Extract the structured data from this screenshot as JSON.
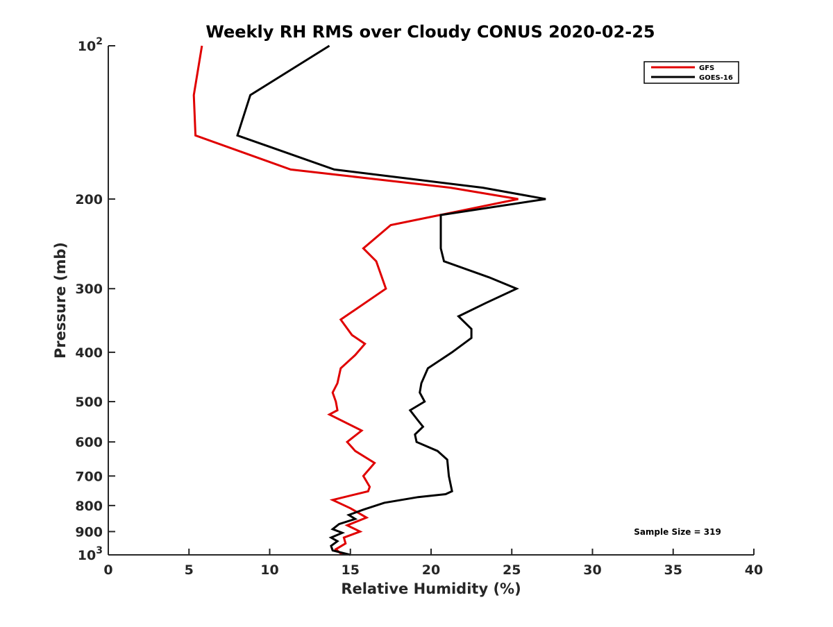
{
  "chart_data": {
    "type": "line",
    "title": "Weekly RH RMS over Cloudy CONUS 2020-02-25",
    "xlabel": "Relative Humidity (%)",
    "ylabel": "Pressure (mb)",
    "xlim": [
      0,
      40
    ],
    "ylim": [
      100,
      1000
    ],
    "y_scale": "log",
    "y_reversed": true,
    "x_ticks": [
      0,
      5,
      10,
      15,
      20,
      25,
      30,
      35,
      40
    ],
    "x_tick_labels": [
      "0",
      "5",
      "10",
      "15",
      "20",
      "25",
      "30",
      "35",
      "40"
    ],
    "y_ticks": [
      100,
      200,
      300,
      400,
      500,
      600,
      700,
      800,
      900,
      1000
    ],
    "y_tick_labels": [
      {
        "base": "10",
        "exp": "2"
      },
      {
        "base": "200",
        "exp": ""
      },
      {
        "base": "300",
        "exp": ""
      },
      {
        "base": "400",
        "exp": ""
      },
      {
        "base": "500",
        "exp": ""
      },
      {
        "base": "600",
        "exp": ""
      },
      {
        "base": "700",
        "exp": ""
      },
      {
        "base": "800",
        "exp": ""
      },
      {
        "base": "900",
        "exp": ""
      },
      {
        "base": "10",
        "exp": "3"
      }
    ],
    "grid": false,
    "legend_position": "top-right",
    "annotation": "Sample Size = 319",
    "series": [
      {
        "name": "GFS",
        "color": "#e00000",
        "points": [
          [
            5.8,
            100
          ],
          [
            5.3,
            125
          ],
          [
            5.4,
            150
          ],
          [
            11.3,
            175
          ],
          [
            21.2,
            190
          ],
          [
            25.4,
            200
          ],
          [
            17.5,
            225
          ],
          [
            15.8,
            250
          ],
          [
            16.6,
            265
          ],
          [
            17.2,
            300
          ],
          [
            14.4,
            345
          ],
          [
            15.1,
            370
          ],
          [
            15.9,
            385
          ],
          [
            15.3,
            405
          ],
          [
            14.4,
            430
          ],
          [
            14.2,
            460
          ],
          [
            13.9,
            480
          ],
          [
            14.1,
            500
          ],
          [
            14.2,
            520
          ],
          [
            13.7,
            530
          ],
          [
            15.7,
            570
          ],
          [
            14.8,
            600
          ],
          [
            15.3,
            625
          ],
          [
            16.5,
            660
          ],
          [
            15.8,
            700
          ],
          [
            16.2,
            735
          ],
          [
            16.1,
            750
          ],
          [
            13.9,
            780
          ],
          [
            15.0,
            810
          ],
          [
            16.0,
            845
          ],
          [
            14.8,
            875
          ],
          [
            15.6,
            900
          ],
          [
            14.6,
            925
          ],
          [
            14.7,
            950
          ],
          [
            14.1,
            975
          ],
          [
            14.5,
            1000
          ]
        ]
      },
      {
        "name": "GOES-16",
        "color": "#000000",
        "points": [
          [
            13.7,
            100
          ],
          [
            8.8,
            125
          ],
          [
            8.0,
            150
          ],
          [
            14.0,
            175
          ],
          [
            23.2,
            190
          ],
          [
            27.1,
            200
          ],
          [
            20.6,
            215
          ],
          [
            20.6,
            250
          ],
          [
            20.8,
            265
          ],
          [
            23.6,
            285
          ],
          [
            25.3,
            300
          ],
          [
            23.4,
            320
          ],
          [
            21.7,
            340
          ],
          [
            22.5,
            360
          ],
          [
            22.5,
            375
          ],
          [
            21.3,
            400
          ],
          [
            19.8,
            430
          ],
          [
            19.4,
            460
          ],
          [
            19.3,
            480
          ],
          [
            19.6,
            500
          ],
          [
            18.7,
            520
          ],
          [
            19.2,
            545
          ],
          [
            19.5,
            560
          ],
          [
            19.0,
            580
          ],
          [
            19.1,
            600
          ],
          [
            20.4,
            625
          ],
          [
            21.0,
            650
          ],
          [
            21.1,
            700
          ],
          [
            21.3,
            750
          ],
          [
            20.9,
            760
          ],
          [
            19.2,
            770
          ],
          [
            17.1,
            790
          ],
          [
            15.8,
            815
          ],
          [
            14.9,
            835
          ],
          [
            15.3,
            850
          ],
          [
            14.3,
            870
          ],
          [
            13.9,
            890
          ],
          [
            14.5,
            905
          ],
          [
            13.8,
            925
          ],
          [
            14.2,
            940
          ],
          [
            13.8,
            960
          ],
          [
            13.9,
            980
          ],
          [
            15.0,
            1000
          ]
        ]
      }
    ]
  }
}
